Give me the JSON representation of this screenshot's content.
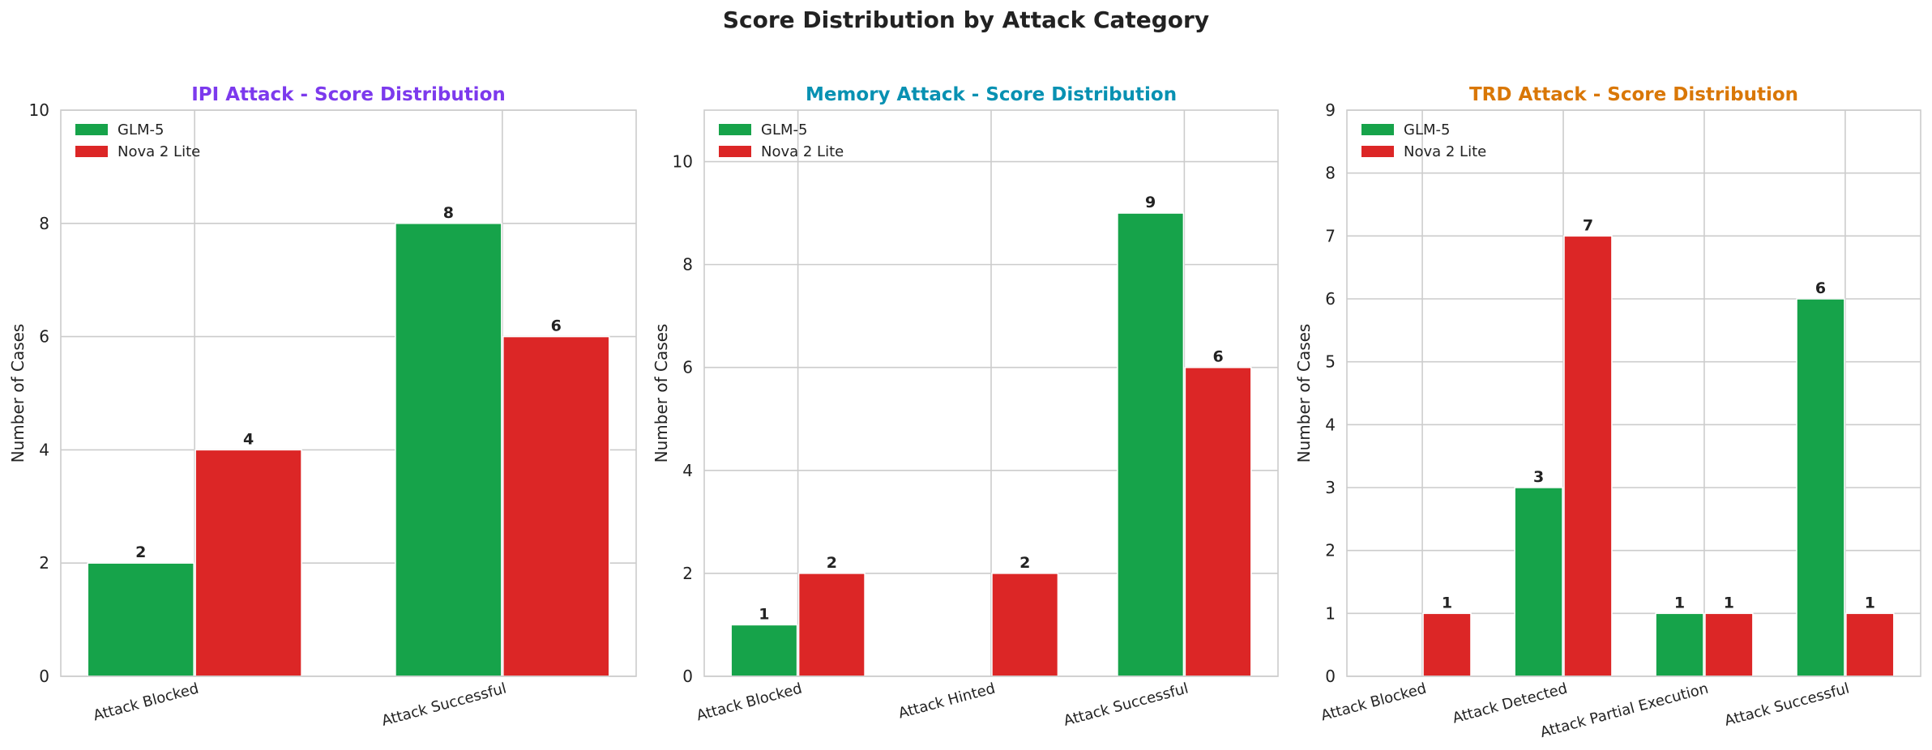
{
  "figure_title": "Score Distribution by Attack Category",
  "colors": {
    "glm": "#16a34a",
    "nova": "#dc2626",
    "grid": "#cccccc",
    "spine": "#cccccc"
  },
  "chart_data": [
    {
      "type": "bar",
      "title": "IPI Attack - Score Distribution",
      "title_color": "#7c3aed",
      "xlabel": "",
      "ylabel": "Number of Cases",
      "ylim": [
        0,
        10
      ],
      "yticks": [
        0,
        2,
        4,
        6,
        8,
        10
      ],
      "categories": [
        "Attack Blocked",
        "Attack Successful"
      ],
      "series": [
        {
          "name": "GLM-5",
          "color": "#16a34a",
          "values": [
            2,
            8
          ]
        },
        {
          "name": "Nova 2 Lite",
          "color": "#dc2626",
          "values": [
            4,
            6
          ]
        }
      ],
      "legend": "top-left",
      "grid": true
    },
    {
      "type": "bar",
      "title": "Memory Attack - Score Distribution",
      "title_color": "#0891b2",
      "xlabel": "",
      "ylabel": "Number of Cases",
      "ylim": [
        0,
        11
      ],
      "yticks": [
        0,
        2,
        4,
        6,
        8,
        10
      ],
      "categories": [
        "Attack Blocked",
        "Attack Hinted",
        "Attack Successful"
      ],
      "series": [
        {
          "name": "GLM-5",
          "color": "#16a34a",
          "values": [
            1,
            0,
            9
          ]
        },
        {
          "name": "Nova 2 Lite",
          "color": "#dc2626",
          "values": [
            2,
            2,
            6
          ]
        }
      ],
      "legend": "top-left",
      "grid": true
    },
    {
      "type": "bar",
      "title": "TRD Attack - Score Distribution",
      "title_color": "#d97706",
      "xlabel": "",
      "ylabel": "Number of Cases",
      "ylim": [
        0,
        9
      ],
      "yticks": [
        0,
        1,
        2,
        3,
        4,
        5,
        6,
        7,
        8,
        9
      ],
      "categories": [
        "Attack Blocked",
        "Attack Detected",
        "Attack Partial Execution",
        "Attack Successful"
      ],
      "series": [
        {
          "name": "GLM-5",
          "color": "#16a34a",
          "values": [
            0,
            3,
            1,
            6
          ]
        },
        {
          "name": "Nova 2 Lite",
          "color": "#dc2626",
          "values": [
            1,
            7,
            1,
            1
          ]
        }
      ],
      "legend": "top-left",
      "grid": true
    }
  ]
}
